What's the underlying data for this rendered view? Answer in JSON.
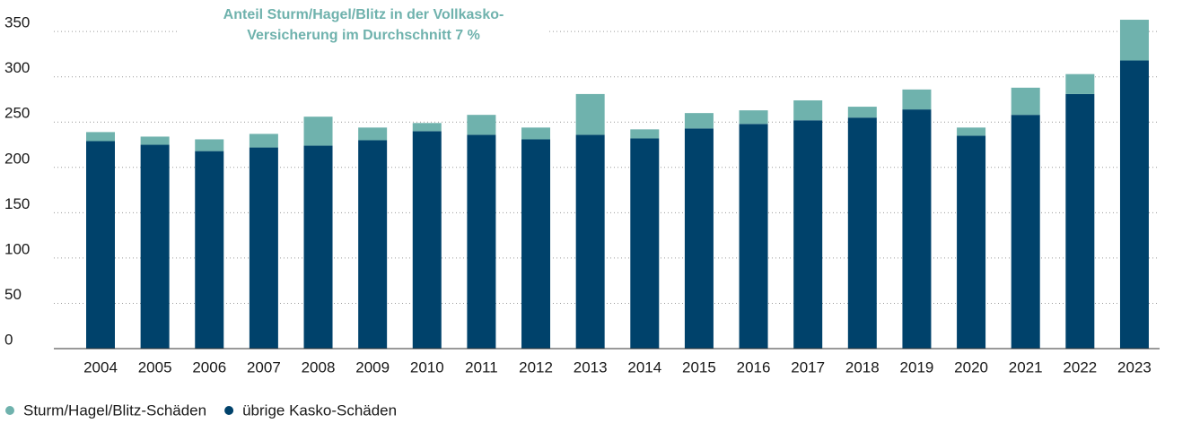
{
  "chart_data": {
    "type": "stacked_bar",
    "annotation": [
      "Anteil Sturm/Hagel/Blitz in der Vollkasko-",
      "Versicherung im Durchschnitt 7 %"
    ],
    "categories": [
      "2004",
      "2005",
      "2006",
      "2007",
      "2008",
      "2009",
      "2010",
      "2011",
      "2012",
      "2013",
      "2014",
      "2015",
      "2016",
      "2017",
      "2018",
      "2019",
      "2020",
      "2021",
      "2022",
      "2023"
    ],
    "series": [
      {
        "name": "Sturm/Hagel/Blitz-Schäden",
        "color": "#6fb2ad",
        "values": [
          10,
          9,
          13,
          15,
          32,
          14,
          9,
          22,
          13,
          45,
          10,
          17,
          15,
          22,
          12,
          22,
          9,
          30,
          22,
          45
        ]
      },
      {
        "name": "übrige Kasko-Schäden",
        "color": "#00426b",
        "values": [
          229,
          225,
          218,
          222,
          224,
          230,
          240,
          236,
          231,
          236,
          232,
          243,
          248,
          252,
          255,
          264,
          235,
          258,
          281,
          318
        ]
      }
    ],
    "ylim": [
      0,
      365
    ],
    "yticks": [
      0,
      50,
      100,
      150,
      200,
      250,
      300,
      350
    ],
    "grid": true,
    "legend": "bottom-left"
  }
}
